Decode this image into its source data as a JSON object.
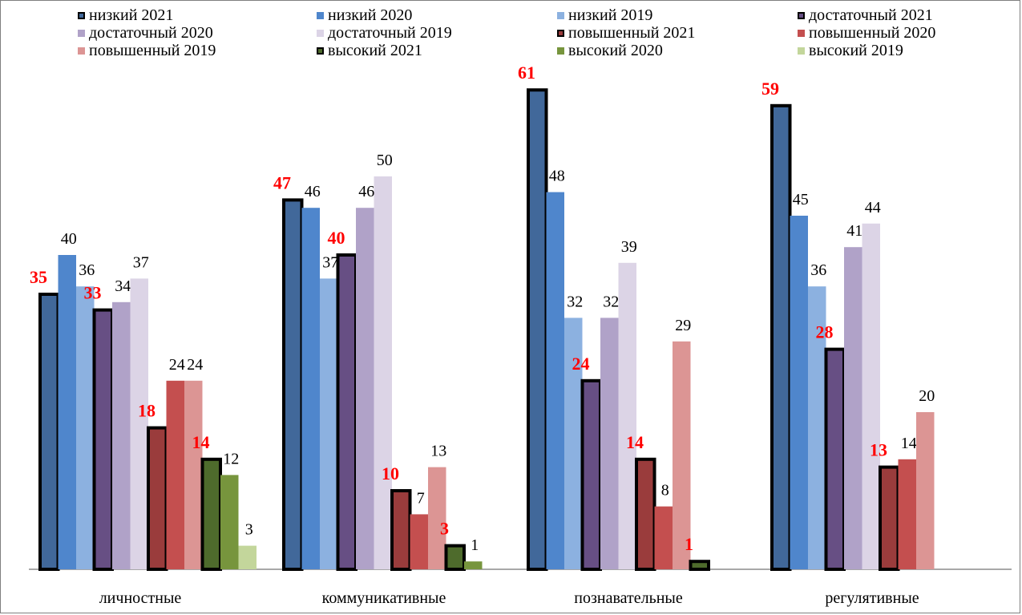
{
  "chart_data": {
    "type": "bar",
    "title": "",
    "xlabel": "",
    "ylabel": "",
    "ylim": [
      0,
      62
    ],
    "grid": false,
    "legend_position": "top",
    "categories": [
      "личностные",
      "коммуникативные",
      "познавательные",
      "регулятивные"
    ],
    "series": [
      {
        "name": "низкий 2021",
        "color": "#41689a",
        "highlight": true,
        "values": [
          35,
          47,
          61,
          59
        ]
      },
      {
        "name": "низкий 2020",
        "color": "#4f86cc",
        "highlight": false,
        "values": [
          40,
          46,
          48,
          45
        ]
      },
      {
        "name": "низкий 2019",
        "color": "#8cb1e0",
        "highlight": false,
        "values": [
          36,
          37,
          32,
          36
        ]
      },
      {
        "name": "достаточный 2021",
        "color": "#674f84",
        "highlight": true,
        "values": [
          33,
          40,
          24,
          28
        ]
      },
      {
        "name": "достаточный 2020",
        "color": "#b0a2c8",
        "highlight": false,
        "values": [
          34,
          46,
          32,
          41
        ]
      },
      {
        "name": "достаточный 2019",
        "color": "#dcd4e6",
        "highlight": false,
        "values": [
          37,
          50,
          39,
          44
        ]
      },
      {
        "name": "повышенный 2021",
        "color": "#9a3c3c",
        "highlight": true,
        "values": [
          18,
          10,
          14,
          13
        ]
      },
      {
        "name": "повышенный 2020",
        "color": "#c44f4f",
        "highlight": false,
        "values": [
          24,
          7,
          8,
          14
        ]
      },
      {
        "name": "повышенный 2019",
        "color": "#dc9594",
        "highlight": false,
        "values": [
          24,
          13,
          29,
          20
        ]
      },
      {
        "name": "высокий 2021",
        "color": "#4e6b2c",
        "highlight": true,
        "values": [
          14,
          3,
          1,
          null
        ]
      },
      {
        "name": "высокий 2020",
        "color": "#77953d",
        "highlight": false,
        "values": [
          12,
          1,
          null,
          null
        ]
      },
      {
        "name": "высокий 2019",
        "color": "#c3d69b",
        "highlight": false,
        "values": [
          3,
          null,
          null,
          null
        ]
      }
    ],
    "highlight_label_color": "#ff0000"
  }
}
